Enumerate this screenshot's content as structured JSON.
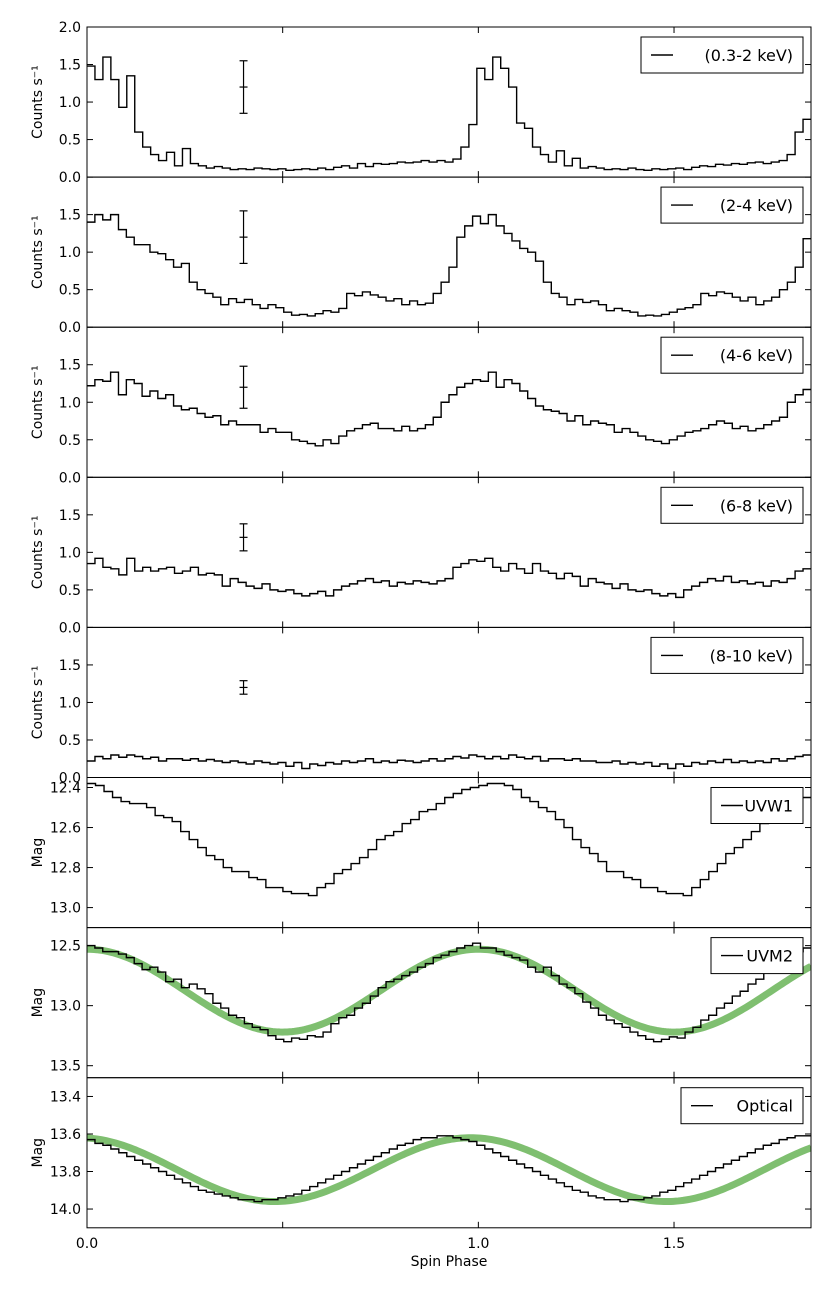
{
  "chart_data": {
    "type": "line",
    "xlabel": "Spin Phase",
    "xlim": [
      0.0,
      1.85
    ],
    "xticks": [
      {
        "value": 0.0,
        "label": "0.0"
      },
      {
        "value": 0.5,
        "label": ""
      },
      {
        "value": 1.0,
        "label": "1.0"
      },
      {
        "value": 1.5,
        "label": "1.5"
      }
    ],
    "panels": [
      {
        "name": "(0.3-2 keV)",
        "ylabel": "Counts s⁻¹",
        "ylim": [
          0,
          2.0
        ],
        "inverted": false,
        "yticks": [
          {
            "value": 0.0,
            "label": "0.0"
          },
          {
            "value": 0.5,
            "label": "0.5"
          },
          {
            "value": 1.0,
            "label": "1.0"
          },
          {
            "value": 1.5,
            "label": "1.5"
          },
          {
            "value": 2.0,
            "label": "2.0"
          }
        ],
        "errorbar": {
          "x": 0.4,
          "y": 1.2,
          "err": 0.35
        },
        "values": [
          1.48,
          1.3,
          1.6,
          1.3,
          0.93,
          1.35,
          0.6,
          0.4,
          0.3,
          0.22,
          0.33,
          0.15,
          0.38,
          0.18,
          0.15,
          0.12,
          0.14,
          0.12,
          0.1,
          0.11,
          0.1,
          0.12,
          0.11,
          0.1,
          0.11,
          0.09,
          0.1,
          0.11,
          0.1,
          0.12,
          0.1,
          0.13,
          0.15,
          0.12,
          0.18,
          0.14,
          0.18,
          0.17,
          0.18,
          0.2,
          0.19,
          0.2,
          0.22,
          0.2,
          0.22,
          0.2,
          0.24,
          0.4,
          0.7,
          1.45,
          1.3,
          1.6,
          1.45,
          1.2,
          0.72,
          0.65,
          0.4,
          0.3,
          0.2,
          0.35,
          0.15,
          0.25,
          0.12,
          0.14,
          0.12,
          0.1,
          0.11,
          0.1,
          0.12,
          0.1,
          0.09,
          0.11,
          0.1,
          0.11,
          0.12,
          0.1,
          0.13,
          0.15,
          0.14,
          0.17,
          0.16,
          0.18,
          0.17,
          0.19,
          0.2,
          0.18,
          0.2,
          0.22,
          0.3,
          0.6,
          0.77
        ]
      },
      {
        "name": "(2-4 keV)",
        "ylabel": "Counts s⁻¹",
        "ylim": [
          0,
          2.0
        ],
        "inverted": false,
        "yticks": [
          {
            "value": 0.0,
            "label": "0.0"
          },
          {
            "value": 0.5,
            "label": "0.5"
          },
          {
            "value": 1.0,
            "label": "1.0"
          },
          {
            "value": 1.5,
            "label": "1.5"
          }
        ],
        "errorbar": {
          "x": 0.4,
          "y": 1.2,
          "err": 0.35
        },
        "values": [
          1.4,
          1.5,
          1.43,
          1.5,
          1.3,
          1.2,
          1.1,
          1.1,
          1.0,
          0.98,
          0.9,
          0.8,
          0.85,
          0.6,
          0.5,
          0.45,
          0.4,
          0.3,
          0.38,
          0.33,
          0.37,
          0.3,
          0.25,
          0.3,
          0.26,
          0.2,
          0.16,
          0.17,
          0.15,
          0.18,
          0.22,
          0.2,
          0.25,
          0.45,
          0.42,
          0.47,
          0.43,
          0.4,
          0.35,
          0.38,
          0.3,
          0.35,
          0.3,
          0.32,
          0.45,
          0.6,
          0.8,
          1.2,
          1.35,
          1.48,
          1.38,
          1.5,
          1.35,
          1.25,
          1.15,
          1.05,
          1.0,
          0.88,
          0.6,
          0.45,
          0.4,
          0.3,
          0.37,
          0.33,
          0.35,
          0.3,
          0.22,
          0.25,
          0.22,
          0.2,
          0.15,
          0.16,
          0.15,
          0.17,
          0.2,
          0.24,
          0.26,
          0.3,
          0.45,
          0.42,
          0.47,
          0.45,
          0.4,
          0.35,
          0.4,
          0.3,
          0.35,
          0.4,
          0.5,
          0.6,
          0.8,
          1.18
        ]
      },
      {
        "name": "(4-6 keV)",
        "ylabel": "Counts s⁻¹",
        "ylim": [
          0,
          2.0
        ],
        "inverted": false,
        "yticks": [
          {
            "value": 0.0,
            "label": "0.0"
          },
          {
            "value": 0.5,
            "label": "0.5"
          },
          {
            "value": 1.0,
            "label": "1.0"
          },
          {
            "value": 1.5,
            "label": "1.5"
          }
        ],
        "errorbar": {
          "x": 0.4,
          "y": 1.2,
          "err": 0.28
        },
        "values": [
          1.22,
          1.3,
          1.28,
          1.4,
          1.1,
          1.3,
          1.25,
          1.08,
          1.15,
          1.05,
          1.1,
          0.95,
          0.9,
          0.92,
          0.85,
          0.8,
          0.82,
          0.7,
          0.75,
          0.7,
          0.7,
          0.7,
          0.6,
          0.65,
          0.6,
          0.6,
          0.5,
          0.48,
          0.45,
          0.42,
          0.5,
          0.45,
          0.55,
          0.62,
          0.65,
          0.7,
          0.72,
          0.65,
          0.65,
          0.62,
          0.68,
          0.62,
          0.65,
          0.7,
          0.8,
          1.0,
          1.1,
          1.2,
          1.25,
          1.3,
          1.28,
          1.4,
          1.2,
          1.3,
          1.25,
          1.15,
          1.05,
          0.95,
          0.9,
          0.88,
          0.85,
          0.75,
          0.82,
          0.7,
          0.75,
          0.72,
          0.7,
          0.6,
          0.65,
          0.6,
          0.55,
          0.5,
          0.48,
          0.45,
          0.5,
          0.55,
          0.6,
          0.62,
          0.65,
          0.7,
          0.75,
          0.72,
          0.65,
          0.68,
          0.62,
          0.65,
          0.7,
          0.75,
          0.8,
          1.0,
          1.1,
          1.17
        ]
      },
      {
        "name": "(6-8 keV)",
        "ylabel": "Counts s⁻¹",
        "ylim": [
          0,
          2.0
        ],
        "inverted": false,
        "yticks": [
          {
            "value": 0.0,
            "label": "0.0"
          },
          {
            "value": 0.5,
            "label": "0.5"
          },
          {
            "value": 1.0,
            "label": "1.0"
          },
          {
            "value": 1.5,
            "label": "1.5"
          }
        ],
        "errorbar": {
          "x": 0.4,
          "y": 1.2,
          "err": 0.18
        },
        "values": [
          0.85,
          0.92,
          0.8,
          0.78,
          0.7,
          0.92,
          0.75,
          0.8,
          0.75,
          0.78,
          0.8,
          0.72,
          0.75,
          0.8,
          0.7,
          0.72,
          0.7,
          0.55,
          0.65,
          0.6,
          0.55,
          0.52,
          0.58,
          0.5,
          0.48,
          0.5,
          0.45,
          0.42,
          0.45,
          0.48,
          0.42,
          0.5,
          0.55,
          0.58,
          0.62,
          0.65,
          0.6,
          0.62,
          0.55,
          0.6,
          0.58,
          0.62,
          0.6,
          0.58,
          0.62,
          0.65,
          0.8,
          0.85,
          0.9,
          0.88,
          0.92,
          0.8,
          0.75,
          0.85,
          0.78,
          0.72,
          0.85,
          0.75,
          0.72,
          0.65,
          0.72,
          0.68,
          0.55,
          0.65,
          0.6,
          0.58,
          0.52,
          0.58,
          0.5,
          0.48,
          0.5,
          0.45,
          0.42,
          0.45,
          0.4,
          0.5,
          0.55,
          0.6,
          0.65,
          0.62,
          0.68,
          0.6,
          0.62,
          0.58,
          0.6,
          0.55,
          0.62,
          0.6,
          0.65,
          0.75,
          0.78
        ]
      },
      {
        "name": "(8-10 keV)",
        "ylabel": "Counts s⁻¹",
        "ylim": [
          0,
          2.0
        ],
        "inverted": false,
        "yticks": [
          {
            "value": 0.0,
            "label": "0.0"
          },
          {
            "value": 0.5,
            "label": "0.5"
          },
          {
            "value": 1.0,
            "label": "1.0"
          },
          {
            "value": 1.5,
            "label": "1.5"
          }
        ],
        "errorbar": {
          "x": 0.4,
          "y": 1.2,
          "err": 0.09
        },
        "values": [
          0.22,
          0.28,
          0.25,
          0.3,
          0.27,
          0.3,
          0.28,
          0.25,
          0.27,
          0.22,
          0.25,
          0.25,
          0.23,
          0.25,
          0.22,
          0.24,
          0.22,
          0.2,
          0.22,
          0.2,
          0.18,
          0.22,
          0.2,
          0.18,
          0.2,
          0.15,
          0.2,
          0.12,
          0.18,
          0.16,
          0.2,
          0.18,
          0.22,
          0.2,
          0.22,
          0.25,
          0.2,
          0.22,
          0.2,
          0.23,
          0.22,
          0.2,
          0.22,
          0.25,
          0.22,
          0.25,
          0.28,
          0.26,
          0.3,
          0.28,
          0.25,
          0.28,
          0.25,
          0.3,
          0.27,
          0.25,
          0.28,
          0.22,
          0.25,
          0.25,
          0.23,
          0.25,
          0.22,
          0.22,
          0.2,
          0.2,
          0.22,
          0.18,
          0.2,
          0.18,
          0.2,
          0.15,
          0.18,
          0.12,
          0.18,
          0.15,
          0.2,
          0.18,
          0.22,
          0.2,
          0.24,
          0.2,
          0.22,
          0.2,
          0.22,
          0.2,
          0.25,
          0.22,
          0.25,
          0.28,
          0.3
        ]
      },
      {
        "name": "UVW1",
        "ylabel": "Mag",
        "ylim": [
          12.35,
          13.1
        ],
        "inverted": true,
        "yticks": [
          {
            "value": 12.4,
            "label": "12.4"
          },
          {
            "value": 12.6,
            "label": "12.6"
          },
          {
            "value": 12.8,
            "label": "12.8"
          },
          {
            "value": 13.0,
            "label": "13.0"
          }
        ],
        "values": [
          12.38,
          12.39,
          12.42,
          12.45,
          12.47,
          12.48,
          12.48,
          12.5,
          12.54,
          12.55,
          12.57,
          12.62,
          12.66,
          12.7,
          12.74,
          12.76,
          12.8,
          12.82,
          12.82,
          12.85,
          12.86,
          12.9,
          12.9,
          12.92,
          12.93,
          12.93,
          12.94,
          12.9,
          12.88,
          12.83,
          12.81,
          12.78,
          12.75,
          12.71,
          12.66,
          12.64,
          12.62,
          12.58,
          12.56,
          12.52,
          12.51,
          12.48,
          12.45,
          12.43,
          12.41,
          12.4,
          12.39,
          12.38,
          12.38,
          12.39,
          12.41,
          12.45,
          12.47,
          12.5,
          12.52,
          12.56,
          12.6,
          12.66,
          12.7,
          12.73,
          12.77,
          12.82,
          12.82,
          12.85,
          12.86,
          12.9,
          12.9,
          12.92,
          12.93,
          12.93,
          12.94,
          12.9,
          12.86,
          12.82,
          12.78,
          12.73,
          12.7,
          12.66,
          12.62,
          12.58,
          12.55,
          12.52,
          12.49,
          12.45,
          12.45
        ]
      },
      {
        "name": "UVM2",
        "ylabel": "Mag",
        "ylim": [
          12.35,
          13.6
        ],
        "inverted": true,
        "yticks": [
          {
            "value": 12.5,
            "label": "12.5"
          },
          {
            "value": 13.0,
            "label": "13.0"
          },
          {
            "value": 13.5,
            "label": "13.5"
          }
        ],
        "fit": {
          "mean": 12.875,
          "amplitude": 0.345,
          "period": 1.0,
          "min_phase": 1.0
        },
        "values": [
          12.5,
          12.52,
          12.55,
          12.55,
          12.57,
          12.6,
          12.65,
          12.7,
          12.68,
          12.72,
          12.8,
          12.78,
          12.85,
          12.82,
          12.86,
          12.9,
          12.98,
          13.02,
          13.08,
          13.1,
          13.15,
          13.18,
          13.2,
          13.25,
          13.28,
          13.3,
          13.27,
          13.28,
          13.25,
          13.26,
          13.22,
          13.15,
          13.1,
          13.08,
          13.02,
          12.98,
          12.92,
          12.85,
          12.8,
          12.78,
          12.75,
          12.72,
          12.68,
          12.65,
          12.6,
          12.58,
          12.55,
          12.52,
          12.5,
          12.48,
          12.52,
          12.52,
          12.55,
          12.58,
          12.6,
          12.62,
          12.68,
          12.72,
          12.68,
          12.75,
          12.82,
          12.85,
          12.9,
          12.97,
          13.02,
          13.08,
          13.12,
          13.15,
          13.18,
          13.22,
          13.25,
          13.28,
          13.3,
          13.28,
          13.26,
          13.27,
          13.22,
          13.18,
          13.12,
          13.08,
          13.02,
          12.98,
          12.92,
          12.88,
          12.82,
          12.78,
          12.72,
          12.68,
          12.62,
          12.58,
          12.55,
          12.52
        ]
      },
      {
        "name": "Optical",
        "ylabel": "Mag",
        "ylim": [
          13.3,
          14.1
        ],
        "inverted": true,
        "yticks": [
          {
            "value": 13.4,
            "label": "13.4"
          },
          {
            "value": 13.6,
            "label": "13.6"
          },
          {
            "value": 13.8,
            "label": "13.8"
          },
          {
            "value": 14.0,
            "label": "14.0"
          }
        ],
        "fit": {
          "mean": 13.79,
          "amplitude": 0.17,
          "period": 1.0,
          "min_phase": 0.98
        },
        "values": [
          13.63,
          13.65,
          13.66,
          13.68,
          13.7,
          13.72,
          13.74,
          13.76,
          13.78,
          13.8,
          13.82,
          13.84,
          13.86,
          13.88,
          13.9,
          13.91,
          13.92,
          13.93,
          13.94,
          13.95,
          13.95,
          13.96,
          13.95,
          13.95,
          13.94,
          13.93,
          13.92,
          13.9,
          13.88,
          13.86,
          13.84,
          13.82,
          13.8,
          13.78,
          13.76,
          13.74,
          13.72,
          13.7,
          13.68,
          13.66,
          13.65,
          13.63,
          13.62,
          13.62,
          13.61,
          13.61,
          13.62,
          13.63,
          13.64,
          13.66,
          13.68,
          13.7,
          13.72,
          13.74,
          13.76,
          13.78,
          13.8,
          13.82,
          13.84,
          13.86,
          13.88,
          13.9,
          13.91,
          13.93,
          13.94,
          13.95,
          13.95,
          13.96,
          13.95,
          13.95,
          13.94,
          13.93,
          13.91,
          13.9,
          13.88,
          13.86,
          13.84,
          13.82,
          13.8,
          13.78,
          13.76,
          13.74,
          13.72,
          13.7,
          13.68,
          13.66,
          13.65,
          13.63,
          13.62,
          13.61,
          13.61
        ]
      }
    ]
  }
}
